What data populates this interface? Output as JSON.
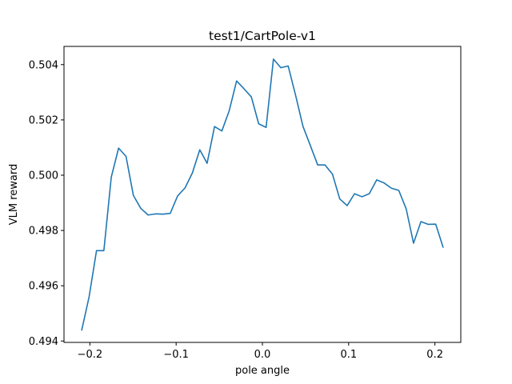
{
  "chart_data": {
    "type": "line",
    "title": "test1/CartPole-v1",
    "xlabel": "pole angle",
    "ylabel": "VLM reward",
    "xlim": [
      -0.23,
      0.23
    ],
    "ylim": [
      0.49395,
      0.50466
    ],
    "grid": false,
    "line_color": "#1f77b4",
    "xticks": [
      {
        "value": -0.2,
        "label": "−0.2"
      },
      {
        "value": -0.1,
        "label": "−0.1"
      },
      {
        "value": 0.0,
        "label": "0.0"
      },
      {
        "value": 0.1,
        "label": "0.1"
      },
      {
        "value": 0.2,
        "label": "0.2"
      }
    ],
    "yticks": [
      {
        "value": 0.494,
        "label": "0.494"
      },
      {
        "value": 0.496,
        "label": "0.496"
      },
      {
        "value": 0.498,
        "label": "0.498"
      },
      {
        "value": 0.5,
        "label": "0.500"
      },
      {
        "value": 0.502,
        "label": "0.502"
      },
      {
        "value": 0.504,
        "label": "0.504"
      }
    ],
    "series": [
      {
        "x": [
          -0.2094,
          -0.2009,
          -0.1923,
          -0.1838,
          -0.1752,
          -0.1667,
          -0.1581,
          -0.1496,
          -0.141,
          -0.1325,
          -0.1239,
          -0.1154,
          -0.1068,
          -0.0983,
          -0.0897,
          -0.0812,
          -0.0726,
          -0.0641,
          -0.0555,
          -0.047,
          -0.0385,
          -0.0299,
          -0.0214,
          -0.0128,
          -0.0043,
          0.0043,
          0.0128,
          0.0214,
          0.0299,
          0.0385,
          0.047,
          0.0555,
          0.0641,
          0.0726,
          0.0812,
          0.0897,
          0.0983,
          0.1068,
          0.1154,
          0.1239,
          0.1325,
          0.141,
          0.1496,
          0.1581,
          0.1667,
          0.1752,
          0.1838,
          0.1923,
          0.2009,
          0.2094
        ],
        "values": [
          0.4944,
          0.4956,
          0.49727,
          0.49727,
          0.49993,
          0.50098,
          0.50068,
          0.49927,
          0.4988,
          0.49856,
          0.4986,
          0.49859,
          0.49862,
          0.49925,
          0.49954,
          0.50008,
          0.50092,
          0.50043,
          0.50176,
          0.5016,
          0.50233,
          0.50341,
          0.50313,
          0.50283,
          0.50186,
          0.50173,
          0.5042,
          0.50389,
          0.50395,
          0.50289,
          0.50177,
          0.50108,
          0.50037,
          0.50037,
          0.50004,
          0.49914,
          0.4989,
          0.49933,
          0.49922,
          0.49933,
          0.49983,
          0.49972,
          0.49953,
          0.49945,
          0.49878,
          0.49754,
          0.49832,
          0.49822,
          0.49823,
          0.4974
        ]
      }
    ]
  }
}
